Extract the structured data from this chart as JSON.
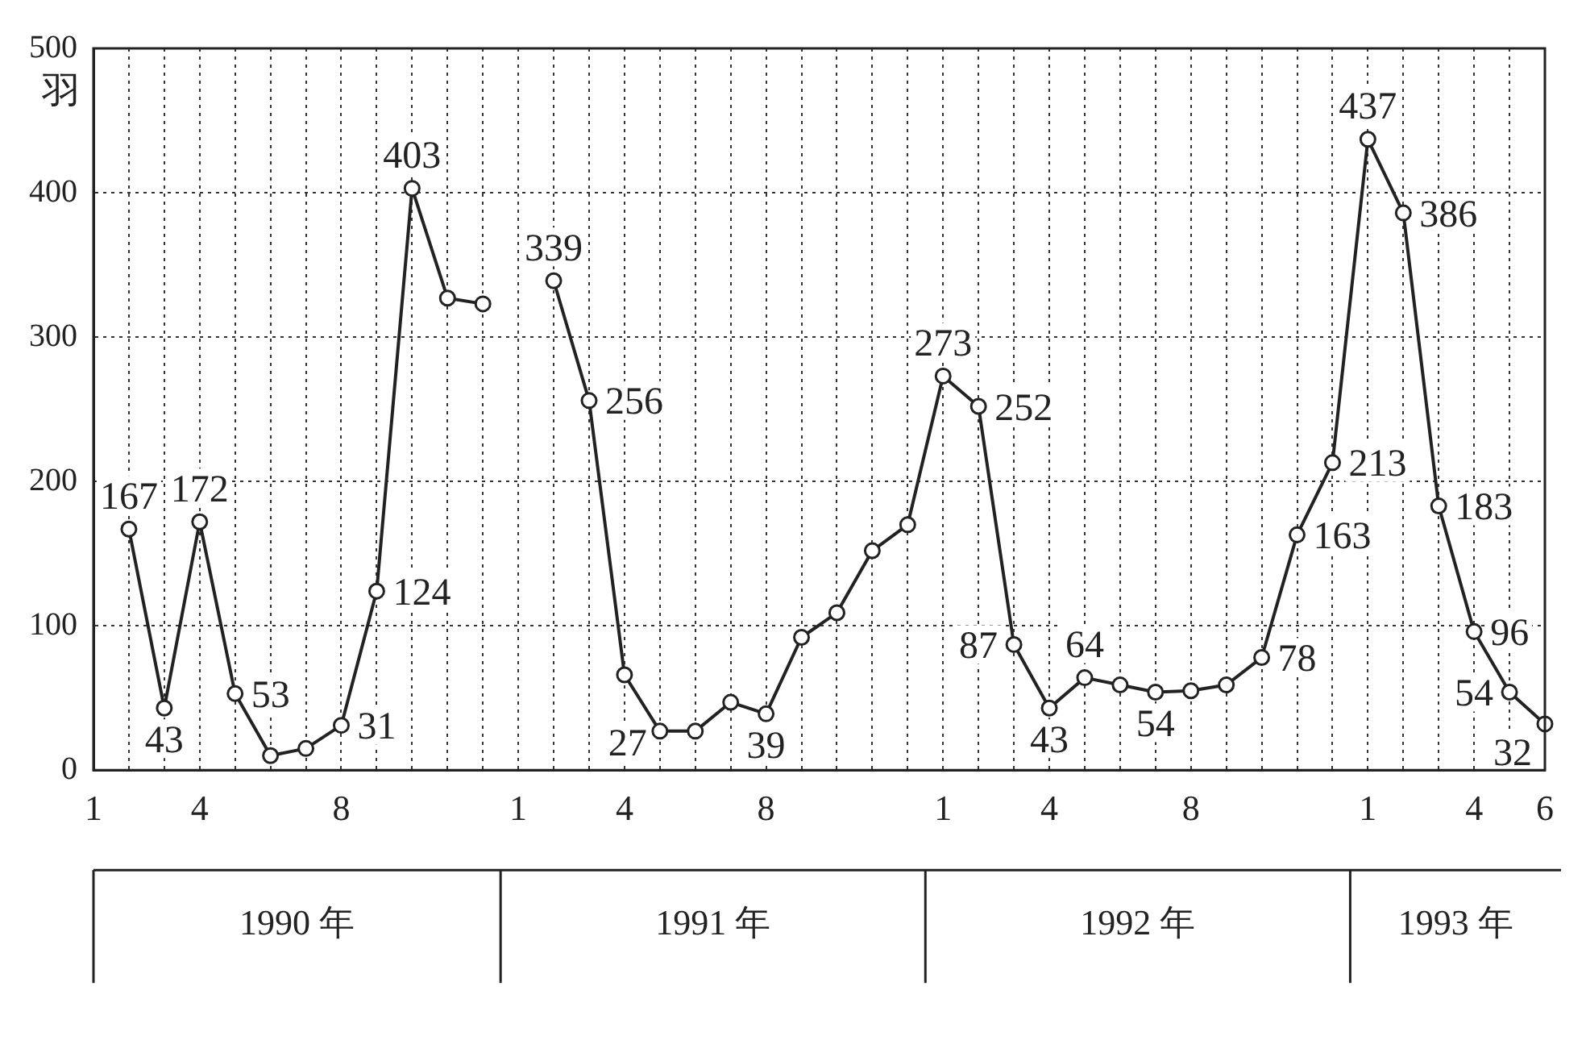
{
  "chart_data": {
    "type": "line",
    "ylabel": "羽",
    "categories": [
      "1",
      null,
      null,
      "4",
      null,
      null,
      null,
      "8",
      null,
      null,
      null,
      null,
      "1",
      null,
      null,
      "4",
      null,
      null,
      null,
      "8",
      null,
      null,
      null,
      null,
      "1",
      null,
      null,
      "4",
      null,
      null,
      null,
      "8",
      null,
      null,
      null,
      null,
      "1",
      null,
      null,
      "4",
      null,
      "6"
    ],
    "series": [
      {
        "color": "#222222",
        "values": [
          null,
          167,
          43,
          172,
          53,
          10,
          15,
          31,
          124,
          403,
          327,
          323,
          null,
          339,
          256,
          66,
          27,
          27,
          47,
          39,
          92,
          109,
          152,
          170,
          273,
          252,
          87,
          43,
          64,
          59,
          54,
          55,
          59,
          78,
          163,
          213,
          437,
          386,
          183,
          96,
          54,
          32
        ],
        "value_labels": [
          null,
          "167",
          "43",
          "172",
          "53",
          null,
          null,
          "31",
          "124",
          "403",
          null,
          null,
          null,
          "339",
          "256",
          null,
          "27",
          null,
          null,
          "39",
          null,
          null,
          null,
          null,
          "273",
          "252",
          "87",
          "43",
          "64",
          null,
          "54",
          null,
          null,
          "78",
          "163",
          "213",
          "437",
          "386",
          "183",
          "96",
          "54",
          "32"
        ]
      }
    ],
    "ylim": [
      0,
      500
    ],
    "yticks": [
      0,
      100,
      200,
      300,
      400,
      500
    ],
    "grid": true,
    "marker": "circle",
    "line_style": "solid",
    "annotations": [
      "1990 年",
      "1991 年",
      "1992 年",
      "1993 年"
    ]
  }
}
